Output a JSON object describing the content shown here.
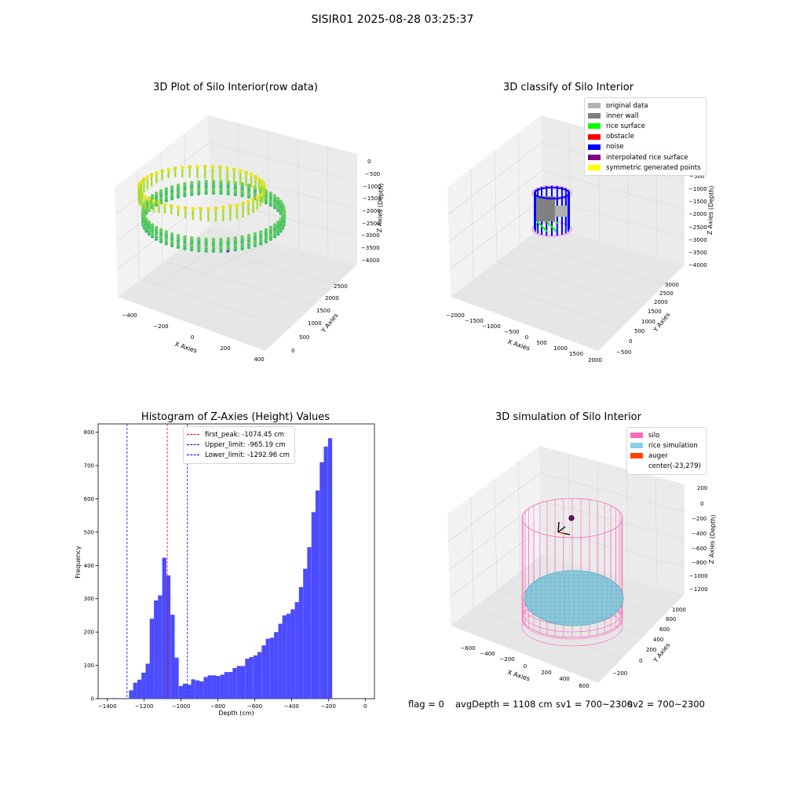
{
  "suptitle": "SISIR01 2025-08-28 03:25:37",
  "panels": {
    "raw": {
      "title": "3D Plot of Silo Interior(row data)",
      "xlabel": "X Axies",
      "ylabel": "Y Axies",
      "zlabel": "Z Axies (Depth)",
      "xticks": [
        "−400",
        "−200",
        "0",
        "200",
        "400"
      ],
      "yticks": [
        "0",
        "500",
        "1000",
        "1500",
        "2000",
        "2500"
      ],
      "zticks": [
        "0",
        "−500",
        "−1000",
        "−1500",
        "−2000",
        "−2500",
        "−3000",
        "−3500",
        "−4000"
      ]
    },
    "classify": {
      "title": "3D classify of Silo Interior",
      "xlabel": "X Axies",
      "ylabel": "Y Axies",
      "zlabel": "Z Axies (Depth)",
      "xticks": [
        "−2000",
        "−1500",
        "−1000",
        "−500",
        "0",
        "500",
        "1000",
        "1500",
        "2000"
      ],
      "yticks": [
        "−500",
        "0",
        "500",
        "1000",
        "1500",
        "2000",
        "2500",
        "3000"
      ],
      "zticks": [
        "−500",
        "−1000",
        "−1500",
        "−2000",
        "−2500",
        "−3000",
        "−3500",
        "−4000"
      ],
      "legend": [
        {
          "label": "original data",
          "color": "#b2b2b2"
        },
        {
          "label": "inner wall",
          "color": "#808080"
        },
        {
          "label": "rice surface",
          "color": "#00ff00"
        },
        {
          "label": "obstacle",
          "color": "#ff0000"
        },
        {
          "label": "noise",
          "color": "#0000ff"
        },
        {
          "label": "interpolated rice surface",
          "color": "#800080"
        },
        {
          "label": "symmetric generated points",
          "color": "#ffff00"
        }
      ]
    },
    "simulation": {
      "title": "3D simulation of Silo Interior",
      "xlabel": "X Axies",
      "ylabel": "Y Axies",
      "zlabel": "Z Axies (Depth)",
      "xticks": [
        "−600",
        "−400",
        "−200",
        "0",
        "200",
        "400",
        "600"
      ],
      "yticks": [
        "−200",
        "0",
        "200",
        "400",
        "600",
        "800",
        "1000"
      ],
      "zticks": [
        "200",
        "0",
        "−200",
        "−400",
        "−600",
        "−800",
        "−1000",
        "−1200"
      ],
      "legend": [
        {
          "label": "silo",
          "color": "#ff69b4"
        },
        {
          "label": "rice simulation",
          "color": "#87ceeb"
        },
        {
          "label": "auger",
          "color": "#ff4500"
        },
        {
          "label": "center(-23,279)",
          "color": ""
        }
      ]
    }
  },
  "chart_data": {
    "type": "bar",
    "title": "Histogram of Z-Axies (Height) Values",
    "xlabel": "Depth (cm)",
    "ylabel": "Frequency",
    "xlim": [
      -1450,
      50
    ],
    "ylim": [
      0,
      825
    ],
    "bin_width": 22.5,
    "bin_starts": [
      -1372,
      -1350,
      -1327,
      -1305,
      -1282,
      -1260,
      -1237,
      -1215,
      -1192,
      -1170,
      -1147,
      -1125,
      -1102,
      -1080,
      -1057,
      -1035,
      -1012,
      -990,
      -967,
      -945,
      -922,
      -900,
      -877,
      -855,
      -832,
      -810,
      -787,
      -765,
      -742,
      -720,
      -697,
      -675,
      -652,
      -630,
      -607,
      -585,
      -562,
      -540,
      -517,
      -495,
      -472,
      -450,
      -427,
      -405,
      -382,
      -360,
      -337,
      -315,
      -292,
      -270,
      -247,
      -225,
      -202,
      -180,
      -157,
      -135,
      -112,
      -90,
      -67,
      -45,
      -22
    ],
    "values": [
      2,
      0,
      0,
      0,
      25,
      48,
      57,
      78,
      105,
      240,
      295,
      310,
      423,
      370,
      252,
      123,
      38,
      45,
      42,
      58,
      55,
      52,
      65,
      70,
      70,
      68,
      72,
      80,
      80,
      92,
      98,
      98,
      120,
      125,
      130,
      140,
      160,
      180,
      183,
      200,
      225,
      250,
      255,
      268,
      290,
      335,
      390,
      455,
      560,
      625,
      710,
      757,
      782,
      0,
      0,
      0,
      0,
      0,
      0,
      0,
      0
    ],
    "xticks": [
      -1400,
      -1200,
      -1000,
      -800,
      -600,
      -400,
      -200,
      0
    ],
    "yticks": [
      0,
      100,
      200,
      300,
      400,
      500,
      600,
      700,
      800
    ],
    "vlines": [
      {
        "label": "first_peak: -1074.45 cm",
        "x": -1074.45,
        "color": "#ff0000"
      },
      {
        "label": "Upper_limit: -965.19 cm",
        "x": -965.19,
        "color": "#0000ff"
      },
      {
        "label": "Lower_limit: -1292.96 cm",
        "x": -1292.96,
        "color": "#0000ff"
      }
    ],
    "bar_color": "#4b4bff"
  },
  "status": {
    "flag": "flag = 0",
    "avg_depth": "avgDepth = 1108 cm",
    "sv1": "sv1 = 700~2300",
    "sv2": "sv2 = 700~2300"
  }
}
